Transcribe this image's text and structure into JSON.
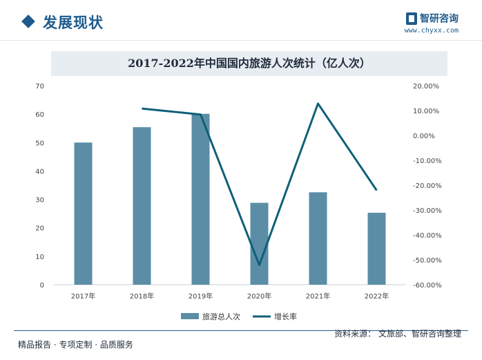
{
  "header": {
    "section_title": "发展现状",
    "brand_name": "智研咨询",
    "brand_url": "www.chyxx.com"
  },
  "chart_data": {
    "type": "bar",
    "title": "2017-2022年中国国内旅游人次统计（亿人次）",
    "categories": [
      "2017年",
      "2018年",
      "2019年",
      "2020年",
      "2021年",
      "2022年"
    ],
    "series": [
      {
        "name": "旅游总人次",
        "type": "bar",
        "axis": "left",
        "values": [
          50.0,
          55.4,
          60.1,
          28.8,
          32.5,
          25.3
        ],
        "color": "#5b8ea6"
      },
      {
        "name": "增长率",
        "type": "line",
        "axis": "right",
        "values": [
          null,
          10.8,
          8.4,
          -52.1,
          12.8,
          -22.1
        ],
        "color": "#0f5f79"
      }
    ],
    "ylim": [
      0,
      70
    ],
    "y2lim": [
      -60,
      20
    ],
    "yticks": [
      "0",
      "10",
      "20",
      "30",
      "40",
      "50",
      "60",
      "70"
    ],
    "y2ticks": [
      "-60.00%",
      "-50.00%",
      "-40.00%",
      "-30.00%",
      "-20.00%",
      "-10.00%",
      "0.00%",
      "10.00%",
      "20.00%"
    ],
    "legend_position": "bottom-center"
  },
  "footer": {
    "left": "精品报告 · 专项定制 · 品质服务",
    "right": "资料来源：  文旅部、智研咨询整理"
  }
}
